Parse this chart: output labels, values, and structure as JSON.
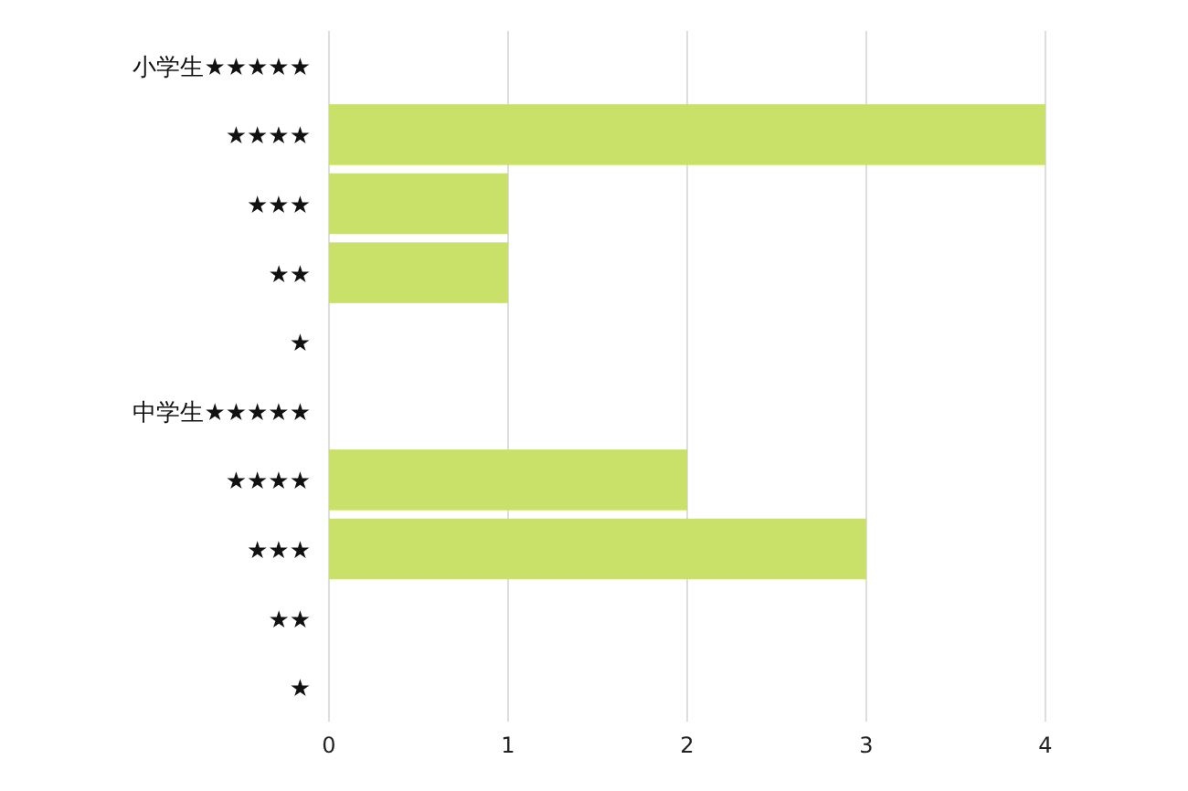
{
  "chart_data": {
    "type": "bar",
    "orientation": "horizontal",
    "categories": [
      "小学生★★★★★",
      "★★★★",
      "★★★",
      "★★",
      "★",
      "中学生★★★★★",
      "★★★★",
      "★★★",
      "★★",
      "★"
    ],
    "values": [
      0,
      4,
      1,
      1,
      0,
      0,
      2,
      3,
      0,
      0
    ],
    "color": "#c9e168",
    "xlim": [
      0,
      4
    ],
    "xticks": [
      0,
      1,
      2,
      3,
      4
    ],
    "grid": "x"
  }
}
